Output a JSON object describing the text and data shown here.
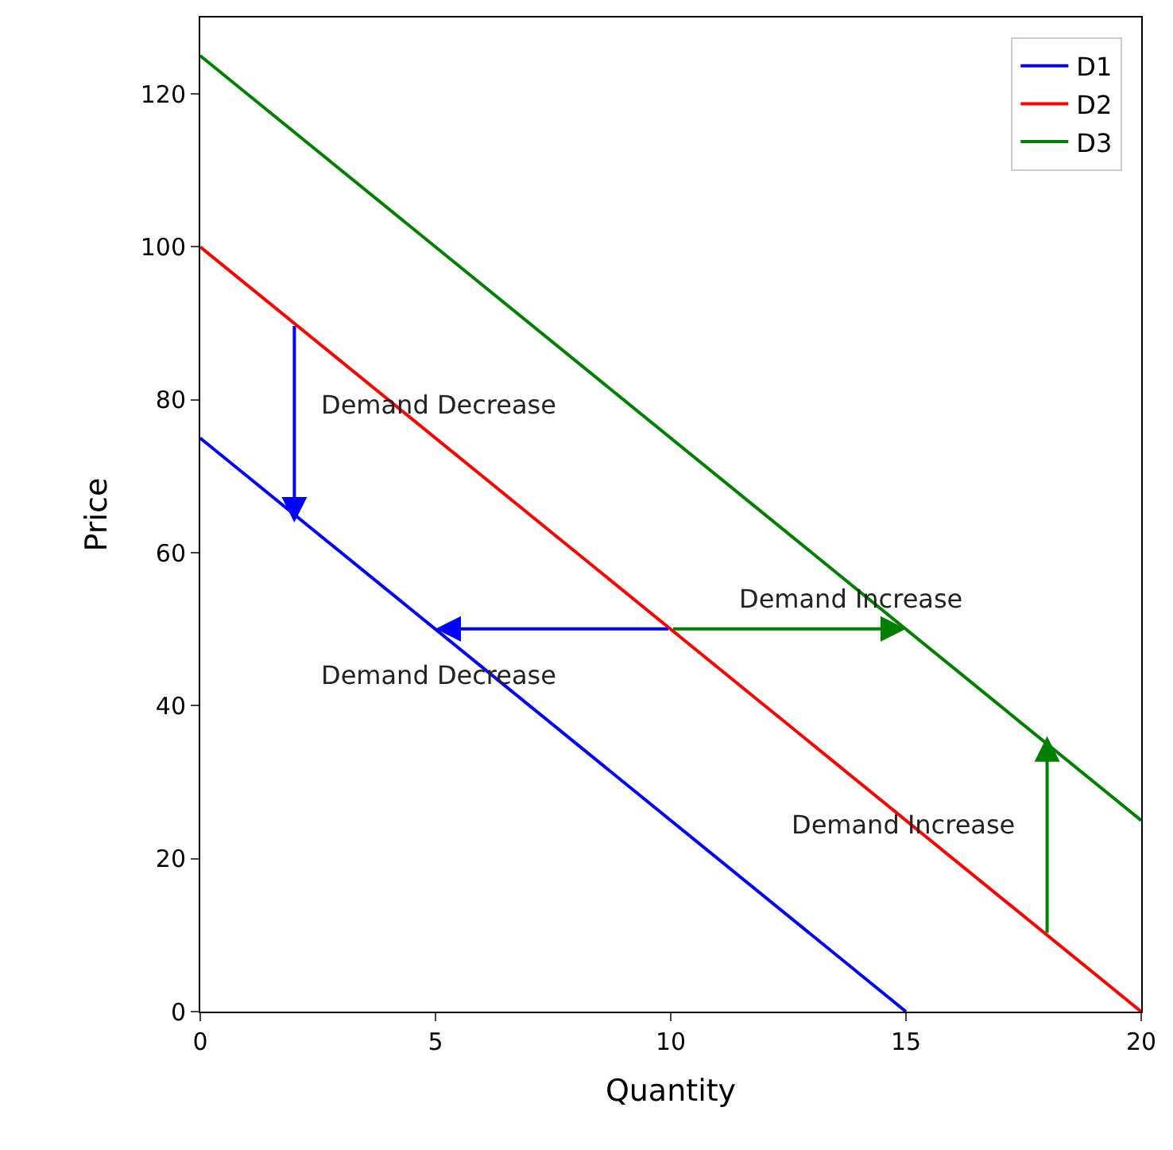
{
  "chart_data": {
    "type": "line",
    "xlabel": "Quantity",
    "ylabel": "Price",
    "xlim": [
      0,
      20
    ],
    "ylim": [
      0,
      130
    ],
    "xticks": [
      0,
      5,
      10,
      15,
      20
    ],
    "yticks": [
      0,
      20,
      40,
      60,
      80,
      100,
      120
    ],
    "legend": "top right",
    "series": [
      {
        "name": "D1",
        "color": "#0000ff",
        "x": [
          0,
          15
        ],
        "values": [
          75,
          0
        ]
      },
      {
        "name": "D2",
        "color": "#ff0000",
        "x": [
          0,
          20
        ],
        "values": [
          100,
          0
        ]
      },
      {
        "name": "D3",
        "color": "#008000",
        "x": [
          0,
          20
        ],
        "values": [
          125,
          25
        ]
      }
    ],
    "annotations": [
      "Demand Decrease",
      "Demand Increase",
      "Demand Decrease",
      "Demand Increase"
    ]
  }
}
